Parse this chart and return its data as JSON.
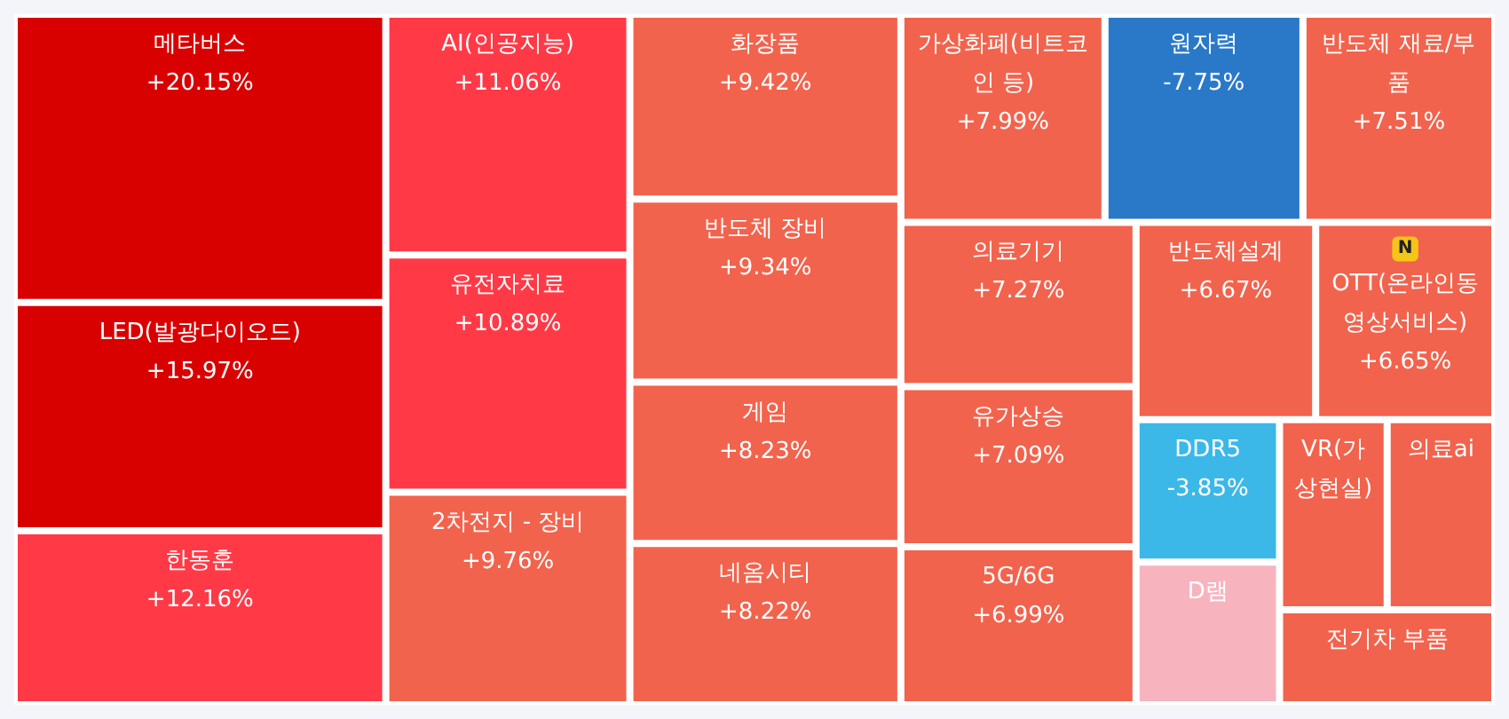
{
  "chart_data": {
    "type": "other",
    "categories": [
      "메타버스",
      "LED(발광다이오드)",
      "한동훈",
      "AI(인공지능)",
      "유전자치료",
      "2차전지 - 장비",
      "화장품",
      "반도체 장비",
      "게임",
      "네옴시티",
      "가상화폐(비트코인 등)",
      "전기차 부품",
      "반도체 재료/부품",
      "의료기기",
      "유가상승",
      "5G/6G",
      "의료ai",
      "OTT(온라인동영상서비스)",
      "반도체설계",
      "VR(가상현실)",
      "D램",
      "DDR5",
      "원자력"
    ],
    "values": [
      20.15,
      15.97,
      12.16,
      11.06,
      10.89,
      9.76,
      9.42,
      9.34,
      8.23,
      8.22,
      7.99,
      null,
      7.51,
      7.27,
      7.09,
      6.99,
      null,
      6.65,
      6.67,
      null,
      null,
      -3.85,
      -7.75
    ],
    "value_labels": [
      "+20.15%",
      "+15.97%",
      "+12.16%",
      "+11.06%",
      "+10.89%",
      "+9.76%",
      "+9.42%",
      "+9.34%",
      "+8.23%",
      "+8.22%",
      "+7.99%",
      null,
      "+7.51%",
      "+7.27%",
      "+7.09%",
      "+6.99%",
      null,
      "+6.65%",
      "+6.67%",
      null,
      null,
      "-3.85%",
      "-7.75%"
    ],
    "annotations": [
      {
        "text": "N",
        "x": "OTT(온라인동영상서비스)"
      }
    ],
    "colors": [
      "#d90000",
      "#d90000",
      "#ff3a46",
      "#ff3a46",
      "#ff3a46",
      "#f2634d",
      "#f2634d",
      "#f2634d",
      "#f2634d",
      "#f2634d",
      "#f2634d",
      "#f2634d",
      "#f2634d",
      "#f2634d",
      "#f2634d",
      "#f2634d",
      "#f2634d",
      "#f2634d",
      "#f2634d",
      "#f2634d",
      "#f7b4be",
      "#3bb8e8",
      "#2a79c8"
    ]
  }
}
